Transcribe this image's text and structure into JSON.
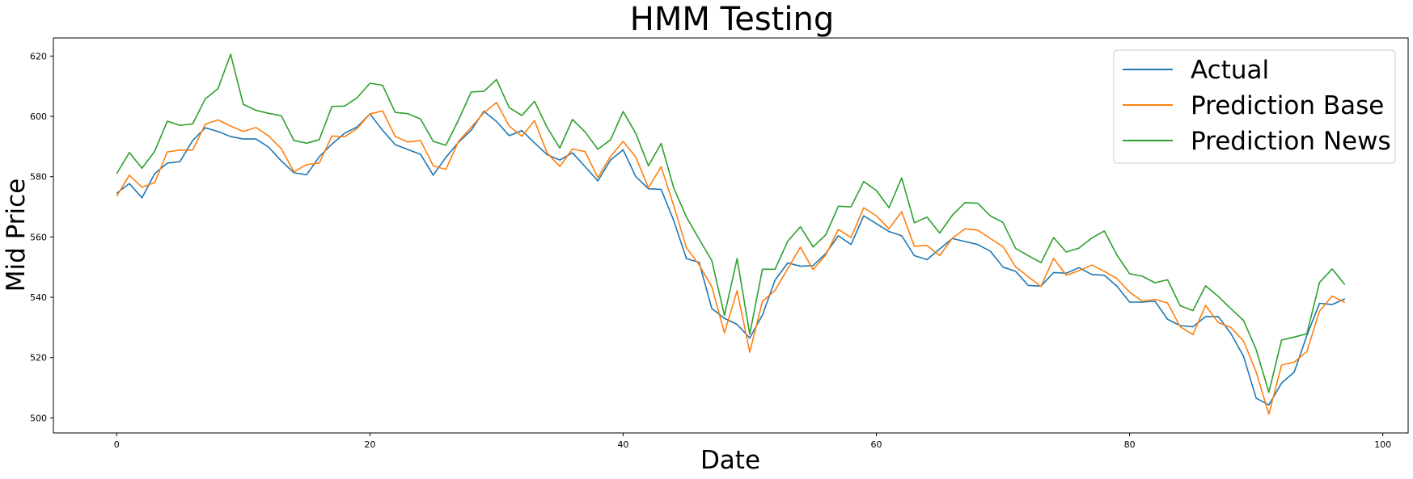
{
  "chart_data": {
    "type": "line",
    "title": "HMM Testing",
    "xlabel": "Date",
    "ylabel": "Mid Price",
    "xlim": [
      -5,
      102
    ],
    "ylim": [
      495,
      626
    ],
    "xticks": [
      0,
      20,
      40,
      60,
      80,
      100
    ],
    "yticks": [
      500,
      520,
      540,
      560,
      580,
      600,
      620
    ],
    "grid": false,
    "legend_position": "top-right",
    "x": [
      0,
      1,
      2,
      3,
      4,
      5,
      6,
      7,
      8,
      9,
      10,
      11,
      12,
      13,
      14,
      15,
      16,
      17,
      18,
      19,
      20,
      21,
      22,
      23,
      24,
      25,
      26,
      27,
      28,
      29,
      30,
      31,
      32,
      33,
      34,
      35,
      36,
      37,
      38,
      39,
      40,
      41,
      42,
      43,
      44,
      45,
      46,
      47,
      48,
      49,
      50,
      51,
      52,
      53,
      54,
      55,
      56,
      57,
      58,
      59,
      60,
      61,
      62,
      63,
      64,
      65,
      66,
      67,
      68,
      69,
      70,
      71,
      72,
      73,
      74,
      75,
      76,
      77,
      78,
      79,
      80,
      81,
      82,
      83,
      84,
      85,
      86,
      87,
      88,
      89,
      90,
      91,
      92,
      93,
      94,
      95,
      96,
      97
    ],
    "series": [
      {
        "name": "Actual",
        "color": "#1f77b4",
        "values": [
          574.5,
          577.7,
          573.0,
          581.0,
          584.5,
          585.0,
          592.0,
          596.2,
          595.0,
          593.3,
          592.5,
          592.5,
          589.8,
          585.2,
          581.3,
          580.6,
          586.6,
          590.8,
          594.4,
          596.5,
          600.8,
          595.4,
          590.6,
          589.0,
          587.4,
          580.5,
          586.4,
          591.4,
          595.4,
          601.7,
          598.3,
          593.6,
          595.3,
          591.2,
          587.3,
          585.5,
          587.9,
          583.3,
          578.6,
          585.5,
          588.9,
          580.0,
          576.0,
          575.8,
          565.4,
          552.8,
          551.6,
          536.3,
          533.0,
          531.0,
          526.5,
          534.1,
          545.7,
          551.4,
          550.3,
          550.5,
          554.5,
          560.4,
          557.5,
          567.0,
          564.4,
          561.8,
          560.4,
          553.8,
          552.5,
          556.0,
          559.5,
          558.5,
          557.5,
          555.3,
          550.0,
          548.6,
          543.9,
          543.7,
          548.2,
          548.0,
          549.8,
          547.6,
          547.3,
          543.7,
          538.4,
          538.4,
          538.7,
          532.7,
          530.6,
          530.2,
          533.6,
          533.6,
          528.0,
          520.4,
          506.5,
          504.3,
          511.5,
          515.2,
          527.3,
          538.0,
          537.6,
          539.5
        ]
      },
      {
        "name": "Prediction Base",
        "color": "#ff7f0e",
        "values": [
          573.5,
          580.5,
          576.5,
          578.0,
          588.2,
          588.8,
          588.8,
          597.4,
          598.8,
          596.8,
          595.0,
          596.3,
          593.5,
          589.3,
          581.6,
          584.0,
          584.5,
          593.5,
          593.2,
          596.0,
          600.8,
          601.8,
          593.3,
          591.5,
          592.0,
          583.6,
          582.4,
          591.7,
          596.4,
          601.2,
          604.6,
          596.8,
          593.4,
          598.6,
          587.8,
          583.4,
          589.2,
          588.3,
          579.7,
          586.7,
          591.7,
          586.5,
          576.3,
          583.3,
          570.3,
          556.4,
          550.8,
          543.5,
          528.2,
          542.2,
          521.8,
          538.6,
          542.3,
          549.5,
          556.6,
          549.2,
          554.0,
          562.5,
          559.8,
          569.7,
          567.0,
          562.7,
          568.4,
          556.9,
          557.2,
          553.8,
          559.6,
          562.7,
          562.3,
          559.5,
          556.8,
          550.1,
          546.8,
          543.6,
          552.9,
          547.3,
          548.8,
          550.7,
          548.6,
          546.2,
          541.7,
          538.7,
          539.3,
          538.1,
          530.2,
          527.6,
          537.3,
          531.6,
          530.0,
          525.5,
          515.2,
          501.2,
          517.5,
          518.5,
          522.0,
          535.4,
          540.4,
          538.3
        ]
      },
      {
        "name": "Prediction News",
        "color": "#2ca02c",
        "values": [
          581.0,
          588.0,
          582.8,
          588.4,
          598.4,
          597.0,
          597.5,
          605.8,
          609.2,
          620.6,
          604.0,
          602.0,
          601.0,
          600.2,
          592.0,
          591.1,
          592.3,
          603.3,
          603.4,
          606.2,
          611.0,
          610.3,
          601.3,
          600.9,
          599.1,
          591.7,
          590.4,
          598.8,
          608.1,
          608.3,
          612.2,
          602.9,
          600.3,
          605.0,
          596.3,
          589.5,
          599.0,
          594.8,
          589.1,
          592.2,
          601.6,
          594.3,
          583.6,
          591.0,
          576.2,
          566.6,
          559.3,
          552.2,
          534.0,
          552.8,
          527.8,
          549.3,
          549.3,
          558.6,
          563.4,
          556.7,
          560.7,
          570.2,
          570.0,
          578.4,
          575.4,
          569.7,
          579.6,
          564.7,
          566.6,
          561.3,
          567.2,
          571.4,
          571.2,
          567.0,
          564.8,
          556.2,
          553.8,
          551.5,
          559.8,
          555.0,
          556.3,
          559.6,
          562.0,
          554.0,
          547.8,
          547.0,
          544.8,
          545.8,
          537.2,
          535.6,
          543.8,
          540.3,
          536.2,
          532.3,
          522.6,
          508.5,
          525.8,
          526.8,
          527.9,
          544.9,
          549.4,
          544.2
        ]
      }
    ]
  }
}
